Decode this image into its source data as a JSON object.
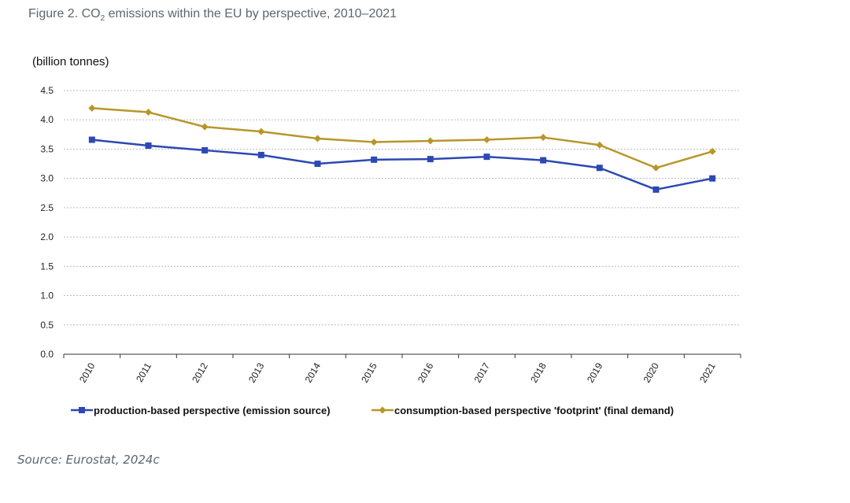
{
  "figure": {
    "title_prefix": "Figure 2. CO",
    "title_sub": "2",
    "title_suffix": " emissions within the EU by perspective, 2010–2021",
    "unit": "(billion tonnes)",
    "source": "Source: Eurostat, 2024c"
  },
  "chart_data": {
    "type": "line",
    "title": "Figure 2. CO2 emissions within the EU by perspective, 2010–2021",
    "xlabel": "",
    "ylabel": "(billion tonnes)",
    "ylim": [
      0,
      4.5
    ],
    "yticks": [
      0.0,
      0.5,
      1.0,
      1.5,
      2.0,
      2.5,
      3.0,
      3.5,
      4.0,
      4.5
    ],
    "ytick_labels": [
      "0.0",
      "0.5",
      "1.0",
      "1.5",
      "2.0",
      "2.5",
      "3.0",
      "3.5",
      "4.0",
      "4.5"
    ],
    "grid": true,
    "legend_position": "bottom",
    "categories": [
      "2010",
      "2011",
      "2012",
      "2013",
      "2014",
      "2015",
      "2016",
      "2017",
      "2018",
      "2019",
      "2020",
      "2021"
    ],
    "series": [
      {
        "name": "production-based perspective (emission source)",
        "color": "#2c48b4",
        "marker": "square",
        "values": [
          3.66,
          3.56,
          3.48,
          3.4,
          3.25,
          3.32,
          3.33,
          3.37,
          3.31,
          3.18,
          2.81,
          3.0
        ]
      },
      {
        "name": "consumption-based perspective 'footprint' (final demand)",
        "color": "#b8962a",
        "marker": "diamond",
        "values": [
          4.2,
          4.13,
          3.88,
          3.8,
          3.68,
          3.62,
          3.64,
          3.66,
          3.7,
          3.57,
          3.18,
          3.46
        ]
      }
    ]
  }
}
